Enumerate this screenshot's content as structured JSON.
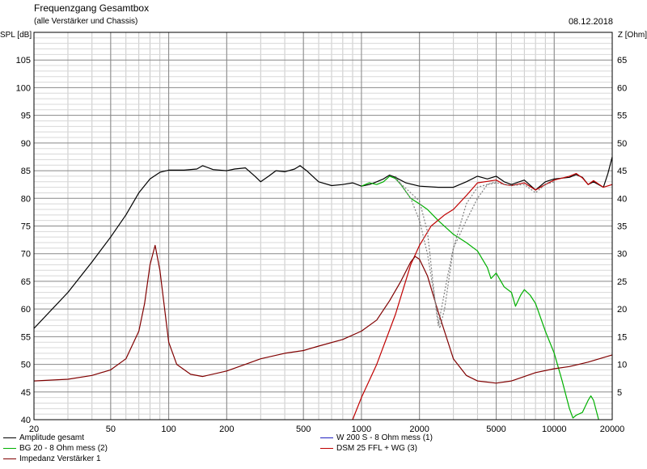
{
  "header": {
    "title": "Frequenzgang Gesamtbox",
    "subtitle": "(alle Verstärker und Chassis)",
    "date": "08.12.2018"
  },
  "chart_data": {
    "type": "line",
    "x_scale": "log",
    "xlim": [
      20,
      20000
    ],
    "x_ticks": [
      {
        "value": 20,
        "label": "20"
      },
      {
        "value": 50,
        "label": "50"
      },
      {
        "value": 100,
        "label": "100"
      },
      {
        "value": 200,
        "label": "200"
      },
      {
        "value": 500,
        "label": "500"
      },
      {
        "value": 1000,
        "label": "1000"
      },
      {
        "value": 2000,
        "label": "2000"
      },
      {
        "value": 5000,
        "label": "5000"
      },
      {
        "value": 10000,
        "label": "10000"
      },
      {
        "value": 20000,
        "label": "20000"
      }
    ],
    "y_left": {
      "label": "SPL [dB]",
      "range": [
        40,
        110
      ],
      "ticks": [
        "40",
        "45",
        "50",
        "55",
        "60",
        "65",
        "70",
        "75",
        "80",
        "85",
        "90",
        "95",
        "100",
        "105"
      ],
      "tick_values": [
        40,
        45,
        50,
        55,
        60,
        65,
        70,
        75,
        80,
        85,
        90,
        95,
        100,
        105
      ]
    },
    "y_right": {
      "label": "Z [Ohm]",
      "range": [
        0,
        70
      ],
      "ticks": [
        "5",
        "10",
        "15",
        "20",
        "25",
        "30",
        "35",
        "40",
        "45",
        "50",
        "55",
        "60",
        "65"
      ],
      "tick_values": [
        5,
        10,
        15,
        20,
        25,
        30,
        35,
        40,
        45,
        50,
        55,
        60,
        65
      ]
    },
    "grid": true,
    "legend_position": "bottom",
    "series": [
      {
        "name": "Amplitude gesamt",
        "color": "#000000",
        "axis": "left",
        "dash": "",
        "points": [
          [
            20,
            56.5
          ],
          [
            30,
            63
          ],
          [
            40,
            68.5
          ],
          [
            50,
            73
          ],
          [
            60,
            77
          ],
          [
            70,
            81
          ],
          [
            80,
            83.5
          ],
          [
            90,
            84.7
          ],
          [
            100,
            85.1
          ],
          [
            120,
            85.1
          ],
          [
            140,
            85.3
          ],
          [
            150,
            85.9
          ],
          [
            170,
            85.2
          ],
          [
            200,
            85
          ],
          [
            220,
            85.3
          ],
          [
            250,
            85.5
          ],
          [
            280,
            84
          ],
          [
            300,
            83
          ],
          [
            330,
            84
          ],
          [
            360,
            85
          ],
          [
            400,
            84.8
          ],
          [
            450,
            85.3
          ],
          [
            480,
            85.9
          ],
          [
            520,
            85
          ],
          [
            600,
            83
          ],
          [
            700,
            82.3
          ],
          [
            800,
            82.5
          ],
          [
            900,
            82.8
          ],
          [
            1000,
            82.2
          ],
          [
            1100,
            82.5
          ],
          [
            1200,
            83
          ],
          [
            1300,
            83.5
          ],
          [
            1400,
            84.2
          ],
          [
            1500,
            83.8
          ],
          [
            1700,
            82.8
          ],
          [
            2000,
            82.2
          ],
          [
            2500,
            82
          ],
          [
            3000,
            82
          ],
          [
            3500,
            83
          ],
          [
            4000,
            84
          ],
          [
            4500,
            83.5
          ],
          [
            5000,
            84
          ],
          [
            5500,
            83
          ],
          [
            6000,
            82.5
          ],
          [
            7000,
            83.3
          ],
          [
            8000,
            81.5
          ],
          [
            9000,
            83
          ],
          [
            10000,
            83.5
          ],
          [
            12000,
            83.8
          ],
          [
            13000,
            84.3
          ],
          [
            14000,
            83.8
          ],
          [
            15000,
            82.5
          ],
          [
            16000,
            83
          ],
          [
            18000,
            82
          ],
          [
            19000,
            84.5
          ],
          [
            20000,
            87.5
          ]
        ]
      },
      {
        "name": "BG 20 - 8 Ohm mess (2)",
        "color": "#00b000",
        "axis": "left",
        "dash": "",
        "points": [
          [
            1000,
            82.2
          ],
          [
            1100,
            82.8
          ],
          [
            1200,
            82.5
          ],
          [
            1300,
            83
          ],
          [
            1400,
            84
          ],
          [
            1500,
            83.6
          ],
          [
            1600,
            82.5
          ],
          [
            1800,
            80
          ],
          [
            2000,
            79
          ],
          [
            2200,
            78
          ],
          [
            2500,
            76
          ],
          [
            3000,
            73.5
          ],
          [
            3500,
            72
          ],
          [
            4000,
            70.5
          ],
          [
            4500,
            67.5
          ],
          [
            4700,
            65.5
          ],
          [
            5000,
            66.5
          ],
          [
            5500,
            64
          ],
          [
            6000,
            63
          ],
          [
            6300,
            60.5
          ],
          [
            6700,
            62.5
          ],
          [
            7000,
            63.5
          ],
          [
            7500,
            62.5
          ],
          [
            8000,
            61
          ],
          [
            9000,
            56
          ],
          [
            10000,
            52
          ],
          [
            11000,
            47
          ],
          [
            12000,
            42
          ],
          [
            12500,
            40.3
          ],
          [
            13000,
            40.8
          ],
          [
            14000,
            41.3
          ],
          [
            15000,
            43.5
          ],
          [
            15500,
            44.3
          ],
          [
            16000,
            43.5
          ],
          [
            17000,
            40
          ]
        ]
      },
      {
        "name": "W 200 S - 8 Ohm mess (1)",
        "color": "#2020c0",
        "axis": "left",
        "dash": "",
        "points": []
      },
      {
        "name": "DSM 25 FFL + WG (3)",
        "color": "#c00000",
        "axis": "left",
        "dash": "",
        "points": [
          [
            900,
            40
          ],
          [
            1000,
            44
          ],
          [
            1200,
            50
          ],
          [
            1500,
            59
          ],
          [
            1800,
            68
          ],
          [
            2000,
            71.5
          ],
          [
            2300,
            75
          ],
          [
            2700,
            77
          ],
          [
            3000,
            78
          ],
          [
            3500,
            80.5
          ],
          [
            4000,
            82.8
          ],
          [
            5000,
            83.3
          ],
          [
            5500,
            82.5
          ],
          [
            6000,
            82.3
          ],
          [
            7000,
            82.8
          ],
          [
            8000,
            81.5
          ],
          [
            9000,
            82.5
          ],
          [
            10000,
            83.3
          ],
          [
            12000,
            84
          ],
          [
            13000,
            84.5
          ],
          [
            14000,
            83.7
          ],
          [
            15000,
            82.5
          ],
          [
            16000,
            83.2
          ],
          [
            18000,
            82
          ],
          [
            20000,
            82.5
          ]
        ]
      },
      {
        "name": "Impedanz Verstärker 1",
        "color": "#800000",
        "axis": "right",
        "dash": "",
        "points": [
          [
            20,
            7
          ],
          [
            30,
            7.3
          ],
          [
            40,
            8
          ],
          [
            50,
            9
          ],
          [
            60,
            11
          ],
          [
            70,
            16
          ],
          [
            75,
            21
          ],
          [
            80,
            28
          ],
          [
            85,
            31.5
          ],
          [
            90,
            27
          ],
          [
            100,
            14
          ],
          [
            110,
            10
          ],
          [
            130,
            8.2
          ],
          [
            150,
            7.8
          ],
          [
            200,
            8.8
          ],
          [
            250,
            10
          ],
          [
            300,
            11
          ],
          [
            400,
            12
          ],
          [
            500,
            12.5
          ],
          [
            600,
            13.3
          ],
          [
            800,
            14.5
          ],
          [
            1000,
            16
          ],
          [
            1200,
            18
          ],
          [
            1400,
            21.5
          ],
          [
            1600,
            25
          ],
          [
            1800,
            28.5
          ],
          [
            1900,
            29.5
          ],
          [
            2000,
            29
          ],
          [
            2200,
            26
          ],
          [
            2500,
            19.5
          ],
          [
            3000,
            11
          ],
          [
            3500,
            8
          ],
          [
            4000,
            7
          ],
          [
            5000,
            6.6
          ],
          [
            6000,
            7
          ],
          [
            8000,
            8.5
          ],
          [
            10000,
            9.2
          ],
          [
            12000,
            9.6
          ],
          [
            15000,
            10.4
          ],
          [
            20000,
            11.7
          ]
        ]
      },
      {
        "name": "",
        "color": "#808080",
        "axis": "left",
        "dash": "2,2",
        "points": [
          [
            1500,
            83.5
          ],
          [
            1800,
            81
          ],
          [
            2000,
            79.5
          ],
          [
            2200,
            74
          ],
          [
            2400,
            62
          ],
          [
            2500,
            57
          ],
          [
            2600,
            60
          ],
          [
            2800,
            66
          ],
          [
            3000,
            71
          ],
          [
            3500,
            76
          ],
          [
            4000,
            80
          ],
          [
            4500,
            82.5
          ],
          [
            5000,
            82.8
          ],
          [
            6000,
            82.3
          ],
          [
            7000,
            82.5
          ],
          [
            8000,
            81
          ],
          [
            9000,
            82.5
          ],
          [
            10000,
            83
          ]
        ]
      },
      {
        "name": "",
        "color": "#808080",
        "axis": "left",
        "dash": "2,2",
        "points": [
          [
            1500,
            84
          ],
          [
            1800,
            80
          ],
          [
            2000,
            76
          ],
          [
            2200,
            70
          ],
          [
            2400,
            62
          ],
          [
            2550,
            56.5
          ],
          [
            2700,
            60
          ],
          [
            3000,
            71
          ],
          [
            3500,
            79
          ],
          [
            4000,
            82
          ],
          [
            5000,
            83
          ]
        ]
      }
    ]
  },
  "legend": [
    {
      "label": "Amplitude gesamt",
      "color": "#000000"
    },
    {
      "label": "BG 20 - 8 Ohm mess (2)",
      "color": "#00b000"
    },
    {
      "label": "Impedanz Verstärker 1",
      "color": "#800000"
    },
    {
      "label": "W 200 S - 8 Ohm mess (1)",
      "color": "#2020c0"
    },
    {
      "label": "DSM 25 FFL + WG (3)",
      "color": "#c00000"
    }
  ]
}
